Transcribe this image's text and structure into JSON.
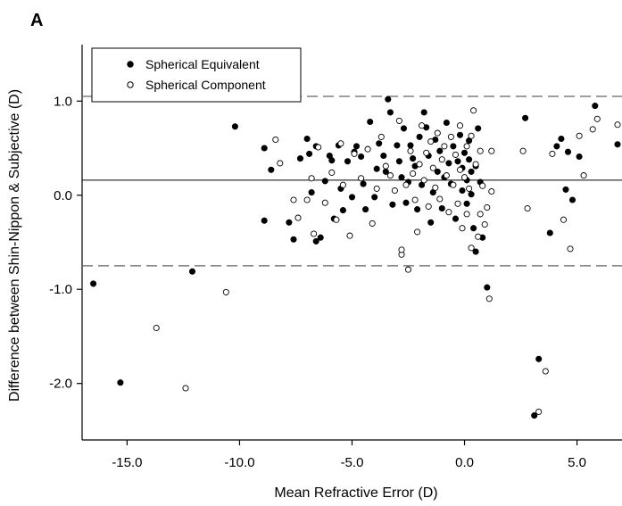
{
  "chart_data": {
    "type": "scatter",
    "panel_label": "A",
    "xlabel": "Mean Refractive Error (D)",
    "ylabel": "Difference between Shin-Nippon & Subjective (D)",
    "xlim": [
      -17.0,
      7.0
    ],
    "ylim": [
      -2.6,
      1.6
    ],
    "x_ticks": [
      -15.0,
      -10.0,
      -5.0,
      0.0,
      5.0
    ],
    "x_tick_labels": [
      "-15.0",
      "-10.0",
      "-5.0",
      "0.0",
      "5.0"
    ],
    "y_ticks": [
      1.0,
      0.0,
      -1.0,
      -2.0
    ],
    "y_tick_labels": [
      "1.0",
      "0.0",
      "-1.0",
      "-2.0"
    ],
    "grid": false,
    "legend_position": "top-left",
    "reference_lines": {
      "mean": 0.16,
      "upper_limit": 1.05,
      "lower_limit": -0.75
    },
    "series": [
      {
        "name": "Spherical Equivalent",
        "marker": "filled-circle",
        "points": [
          [
            -16.5,
            -0.94
          ],
          [
            -15.3,
            -1.99
          ],
          [
            -12.1,
            -0.81
          ],
          [
            -10.2,
            0.73
          ],
          [
            -8.9,
            0.5
          ],
          [
            -8.9,
            -0.27
          ],
          [
            -8.6,
            0.27
          ],
          [
            -7.8,
            -0.29
          ],
          [
            -7.6,
            -0.47
          ],
          [
            -7.3,
            0.39
          ],
          [
            -7.0,
            0.6
          ],
          [
            -6.9,
            0.44
          ],
          [
            -6.8,
            0.03
          ],
          [
            -6.6,
            0.52
          ],
          [
            -6.6,
            -0.49
          ],
          [
            -6.4,
            -0.45
          ],
          [
            -6.2,
            0.15
          ],
          [
            -6.0,
            0.42
          ],
          [
            -5.9,
            0.37
          ],
          [
            -5.8,
            -0.25
          ],
          [
            -5.6,
            0.53
          ],
          [
            -5.5,
            0.07
          ],
          [
            -5.4,
            -0.16
          ],
          [
            -5.2,
            0.36
          ],
          [
            -5.0,
            -0.02
          ],
          [
            -4.9,
            0.46
          ],
          [
            -4.8,
            0.52
          ],
          [
            -4.6,
            0.41
          ],
          [
            -4.5,
            0.12
          ],
          [
            -4.4,
            -0.15
          ],
          [
            -4.2,
            0.78
          ],
          [
            -4.0,
            -0.02
          ],
          [
            -3.9,
            0.28
          ],
          [
            -3.8,
            0.55
          ],
          [
            -3.6,
            0.42
          ],
          [
            -3.5,
            0.25
          ],
          [
            -3.4,
            1.02
          ],
          [
            -3.3,
            0.88
          ],
          [
            -3.2,
            -0.1
          ],
          [
            -3.0,
            0.53
          ],
          [
            -2.9,
            0.36
          ],
          [
            -2.8,
            0.19
          ],
          [
            -2.7,
            0.71
          ],
          [
            -2.6,
            -0.08
          ],
          [
            -2.5,
            0.14
          ],
          [
            -2.4,
            0.53
          ],
          [
            -2.3,
            0.39
          ],
          [
            -2.2,
            0.31
          ],
          [
            -2.1,
            -0.15
          ],
          [
            -2.0,
            0.62
          ],
          [
            -1.9,
            0.11
          ],
          [
            -1.8,
            0.88
          ],
          [
            -1.7,
            0.72
          ],
          [
            -1.6,
            0.42
          ],
          [
            -1.5,
            -0.29
          ],
          [
            -1.4,
            0.03
          ],
          [
            -1.3,
            0.59
          ],
          [
            -1.2,
            0.25
          ],
          [
            -1.1,
            0.47
          ],
          [
            -1.0,
            -0.14
          ],
          [
            -0.9,
            0.19
          ],
          [
            -0.8,
            0.77
          ],
          [
            -0.7,
            0.34
          ],
          [
            -0.6,
            0.12
          ],
          [
            -0.5,
            0.52
          ],
          [
            -0.4,
            -0.25
          ],
          [
            -0.3,
            0.36
          ],
          [
            -0.2,
            0.64
          ],
          [
            -0.1,
            0.29
          ],
          [
            -0.1,
            0.05
          ],
          [
            0.0,
            0.45
          ],
          [
            0.1,
            0.16
          ],
          [
            0.1,
            -0.09
          ],
          [
            0.2,
            0.38
          ],
          [
            0.2,
            0.58
          ],
          [
            0.3,
            0.25
          ],
          [
            0.3,
            0.01
          ],
          [
            0.4,
            -0.35
          ],
          [
            0.5,
            0.31
          ],
          [
            0.5,
            -0.6
          ],
          [
            0.6,
            0.71
          ],
          [
            0.7,
            0.14
          ],
          [
            0.8,
            -0.45
          ],
          [
            1.0,
            -0.98
          ],
          [
            2.7,
            0.82
          ],
          [
            3.1,
            -2.34
          ],
          [
            3.3,
            -1.74
          ],
          [
            3.8,
            -0.4
          ],
          [
            4.1,
            0.52
          ],
          [
            4.3,
            0.6
          ],
          [
            4.5,
            0.06
          ],
          [
            4.6,
            0.46
          ],
          [
            4.8,
            -0.05
          ],
          [
            5.1,
            0.41
          ],
          [
            5.8,
            0.95
          ],
          [
            6.8,
            0.54
          ]
        ]
      },
      {
        "name": "Spherical Component",
        "marker": "open-circle",
        "points": [
          [
            -13.7,
            -1.41
          ],
          [
            -12.4,
            -2.05
          ],
          [
            -10.6,
            -1.03
          ],
          [
            -8.4,
            0.59
          ],
          [
            -8.2,
            0.34
          ],
          [
            -7.6,
            -0.05
          ],
          [
            -7.4,
            -0.24
          ],
          [
            -7.0,
            -0.05
          ],
          [
            -6.8,
            0.18
          ],
          [
            -6.7,
            -0.41
          ],
          [
            -6.5,
            0.51
          ],
          [
            -6.2,
            -0.08
          ],
          [
            -5.9,
            0.24
          ],
          [
            -5.7,
            -0.26
          ],
          [
            -5.5,
            0.55
          ],
          [
            -5.4,
            0.11
          ],
          [
            -5.1,
            -0.43
          ],
          [
            -4.9,
            0.44
          ],
          [
            -4.6,
            0.18
          ],
          [
            -4.3,
            0.49
          ],
          [
            -4.1,
            -0.3
          ],
          [
            -3.9,
            0.07
          ],
          [
            -3.7,
            0.62
          ],
          [
            -3.5,
            0.31
          ],
          [
            -3.3,
            0.21
          ],
          [
            -3.1,
            0.05
          ],
          [
            -2.9,
            0.79
          ],
          [
            -2.8,
            -0.63
          ],
          [
            -2.8,
            -0.58
          ],
          [
            -2.6,
            0.11
          ],
          [
            -2.5,
            -0.79
          ],
          [
            -2.4,
            0.47
          ],
          [
            -2.3,
            0.23
          ],
          [
            -2.2,
            -0.05
          ],
          [
            -2.1,
            -0.39
          ],
          [
            -2.0,
            0.33
          ],
          [
            -1.9,
            0.74
          ],
          [
            -1.8,
            0.16
          ],
          [
            -1.7,
            0.45
          ],
          [
            -1.6,
            -0.12
          ],
          [
            -1.5,
            0.57
          ],
          [
            -1.4,
            0.29
          ],
          [
            -1.3,
            0.08
          ],
          [
            -1.2,
            0.66
          ],
          [
            -1.1,
            -0.04
          ],
          [
            -1.0,
            0.38
          ],
          [
            -0.9,
            0.52
          ],
          [
            -0.8,
            0.21
          ],
          [
            -0.7,
            -0.18
          ],
          [
            -0.6,
            0.62
          ],
          [
            -0.5,
            0.11
          ],
          [
            -0.4,
            0.43
          ],
          [
            -0.3,
            -0.09
          ],
          [
            -0.2,
            0.27
          ],
          [
            -0.2,
            0.74
          ],
          [
            -0.1,
            -0.35
          ],
          [
            0.0,
            0.19
          ],
          [
            0.1,
            0.52
          ],
          [
            0.1,
            -0.2
          ],
          [
            0.2,
            0.07
          ],
          [
            0.3,
            0.63
          ],
          [
            0.3,
            -0.56
          ],
          [
            0.4,
            0.9
          ],
          [
            0.5,
            0.33
          ],
          [
            0.6,
            -0.44
          ],
          [
            0.7,
            0.47
          ],
          [
            0.7,
            -0.2
          ],
          [
            0.8,
            0.1
          ],
          [
            0.9,
            -0.31
          ],
          [
            1.0,
            -0.13
          ],
          [
            1.1,
            -1.1
          ],
          [
            1.2,
            0.04
          ],
          [
            1.2,
            0.47
          ],
          [
            2.6,
            0.47
          ],
          [
            2.8,
            -0.14
          ],
          [
            3.3,
            -2.3
          ],
          [
            3.6,
            -1.87
          ],
          [
            3.9,
            0.44
          ],
          [
            4.4,
            -0.26
          ],
          [
            4.7,
            -0.57
          ],
          [
            5.1,
            0.63
          ],
          [
            5.3,
            0.21
          ],
          [
            5.7,
            0.7
          ],
          [
            5.9,
            0.81
          ],
          [
            6.8,
            0.75
          ]
        ]
      }
    ]
  }
}
